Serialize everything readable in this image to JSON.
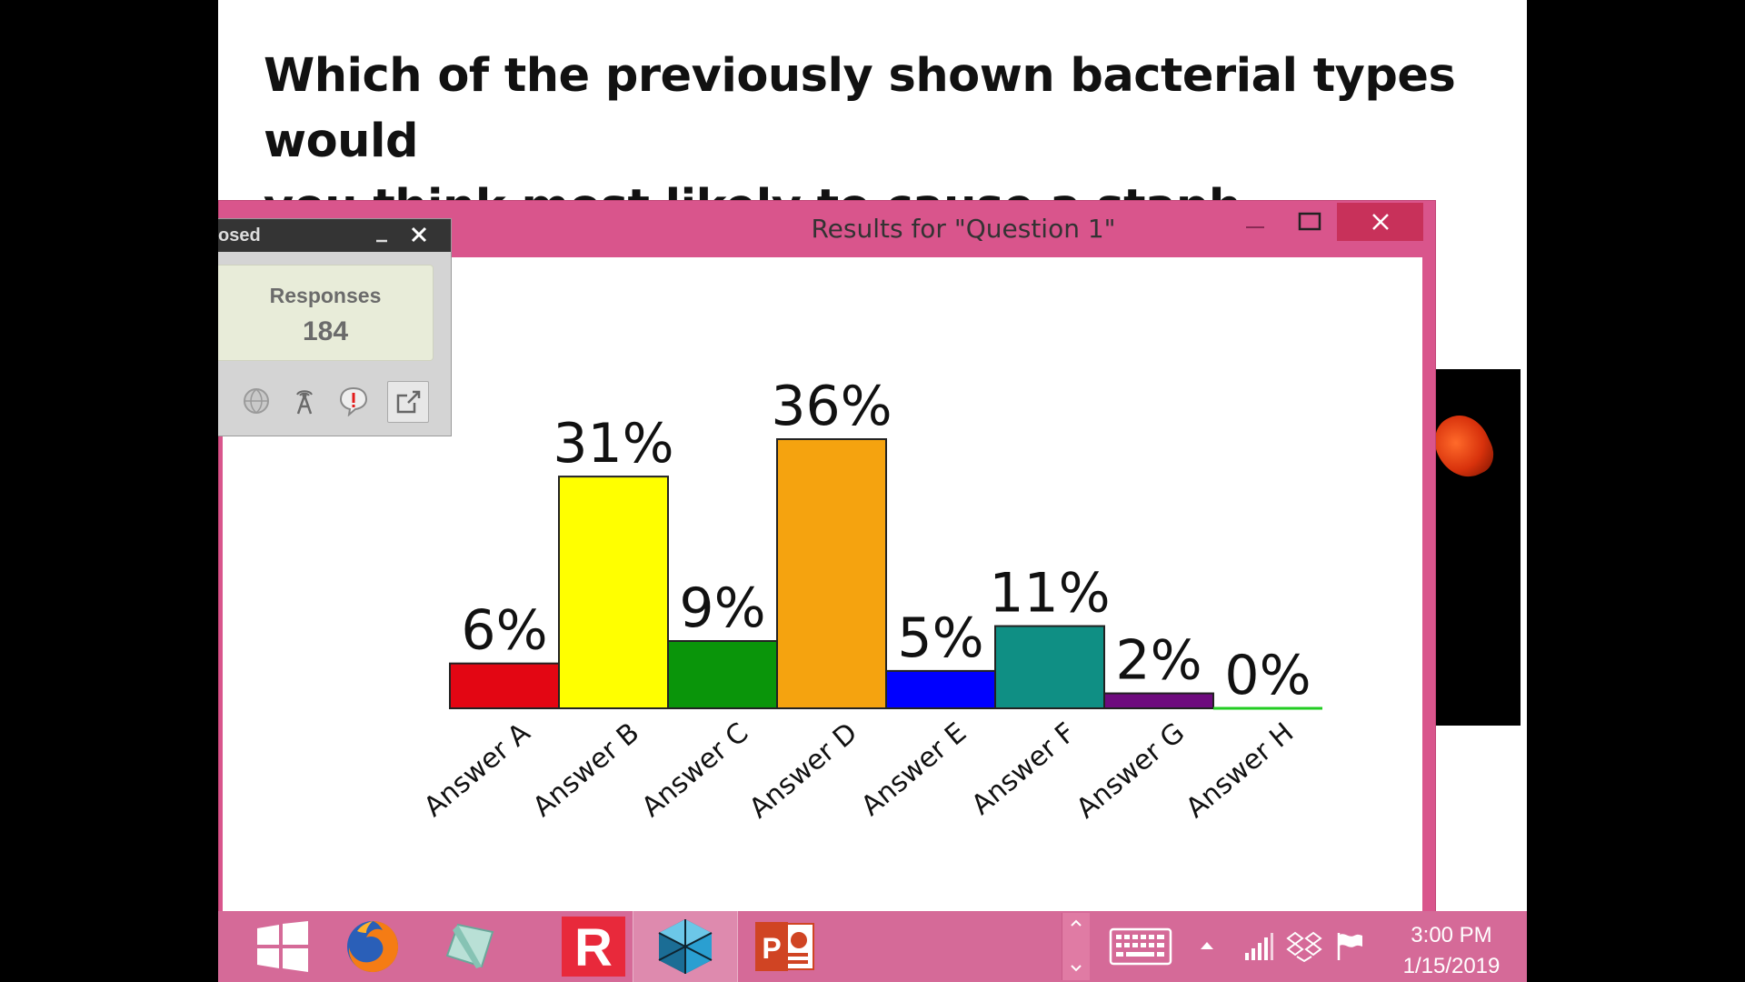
{
  "slide": {
    "title_line1": "Which of the previously shown bacterial types would",
    "title_line2": "you think most likely to cause a staph infection?"
  },
  "results_window": {
    "title": "Results for \"Question 1\"",
    "controls": [
      "minimize-icon",
      "maximize-icon",
      "close-icon"
    ]
  },
  "poll_widget": {
    "title_partial": "osed",
    "responses_label": "Responses",
    "responses_count": "184",
    "icons": [
      "globe-icon",
      "antenna-icon",
      "alert-bubble-icon",
      "share-icon"
    ]
  },
  "chart_data": {
    "type": "bar",
    "categories": [
      "Answer A",
      "Answer B",
      "Answer C",
      "Answer D",
      "Answer E",
      "Answer F",
      "Answer G",
      "Answer H"
    ],
    "values": [
      6,
      31,
      9,
      36,
      5,
      11,
      2,
      0
    ],
    "value_labels": [
      "6%",
      "31%",
      "9%",
      "36%",
      "5%",
      "11%",
      "2%",
      "0%"
    ],
    "colors": [
      "#e30613",
      "#ffff00",
      "#0a950a",
      "#f5a30f",
      "#0000ff",
      "#0f8f84",
      "#6e0b7e",
      "#22cc22"
    ],
    "unit": "%",
    "ylim": [
      0,
      36
    ],
    "grid": false,
    "legend": "none"
  },
  "taskbar": {
    "apps": [
      "windows-start",
      "firefox",
      "glass-app",
      "r-app",
      "vm-app",
      "powerpoint"
    ],
    "colors": {
      "background": "#d56a98",
      "window_frame": "#d9558c"
    }
  },
  "clock": {
    "time": "3:00 PM",
    "date": "1/15/2019"
  }
}
